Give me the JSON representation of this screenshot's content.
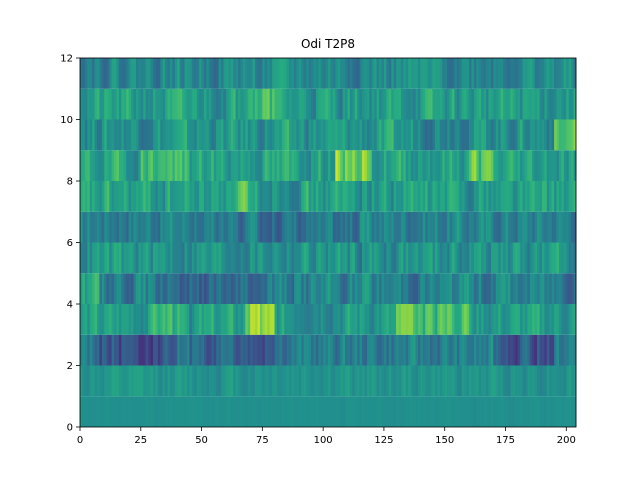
{
  "chart_data": {
    "type": "heatmap",
    "title": "Odi T2P8",
    "xlabel": "",
    "ylabel": "",
    "xlim": [
      0,
      204
    ],
    "ylim": [
      0,
      12
    ],
    "x_ticks": [
      0,
      25,
      50,
      75,
      100,
      125,
      150,
      175,
      200
    ],
    "y_ticks": [
      0,
      2,
      4,
      6,
      8,
      10,
      12
    ],
    "colormap": "viridis",
    "grid": false,
    "n_columns": 204,
    "rows": [
      {
        "y": [
          0,
          1
        ],
        "description": "near-uniform teal",
        "base": 0.5,
        "spread": 0.02,
        "seed": 11
      },
      {
        "y": [
          1,
          2
        ],
        "description": "teal with faint green stripes",
        "base": 0.52,
        "spread": 0.1,
        "seed": 12
      },
      {
        "y": [
          2,
          3
        ],
        "description": "dark blue bands around x=10-40, 45-80, 170-195",
        "base": 0.42,
        "spread": 0.18,
        "seed": 13,
        "features": [
          {
            "x": [
              8,
              40
            ],
            "delta": -0.18
          },
          {
            "x": [
              45,
              80
            ],
            "delta": -0.12
          },
          {
            "x": [
              170,
              195
            ],
            "delta": -0.15
          }
        ]
      },
      {
        "y": [
          3,
          4
        ],
        "description": "bright green peaks near x=70-78 and x=130-160",
        "base": 0.55,
        "spread": 0.18,
        "seed": 14,
        "features": [
          {
            "x": [
              30,
              45
            ],
            "delta": 0.15
          },
          {
            "x": [
              68,
              80
            ],
            "delta": 0.32
          },
          {
            "x": [
              130,
              160
            ],
            "delta": 0.2
          }
        ]
      },
      {
        "y": [
          4,
          5
        ],
        "description": "dark blue region x=25-80",
        "base": 0.45,
        "spread": 0.2,
        "seed": 15,
        "features": [
          {
            "x": [
              30,
              75
            ],
            "delta": -0.15
          },
          {
            "x": [
              0,
              8
            ],
            "delta": 0.2
          }
        ]
      },
      {
        "y": [
          5,
          6
        ],
        "description": "mixed teal/green",
        "base": 0.52,
        "spread": 0.2,
        "seed": 16
      },
      {
        "y": [
          6,
          7
        ],
        "description": "dark blue band x=50-115",
        "base": 0.46,
        "spread": 0.18,
        "seed": 17,
        "features": [
          {
            "x": [
              50,
              115
            ],
            "delta": -0.1
          }
        ]
      },
      {
        "y": [
          7,
          8
        ],
        "description": "mixed teal/green",
        "base": 0.56,
        "spread": 0.2,
        "seed": 18,
        "features": [
          {
            "x": [
              60,
              70
            ],
            "delta": 0.15
          }
        ]
      },
      {
        "y": [
          8,
          9
        ],
        "description": "bright yellow-green x=105-120",
        "base": 0.58,
        "spread": 0.2,
        "seed": 19,
        "features": [
          {
            "x": [
              105,
              120
            ],
            "delta": 0.3
          },
          {
            "x": [
              25,
              45
            ],
            "delta": 0.12
          },
          {
            "x": [
              160,
              170
            ],
            "delta": 0.2
          }
        ]
      },
      {
        "y": [
          9,
          10
        ],
        "description": "teal with green patches",
        "base": 0.52,
        "spread": 0.2,
        "seed": 20,
        "features": [
          {
            "x": [
              195,
              204
            ],
            "delta": 0.25
          }
        ]
      },
      {
        "y": [
          10,
          11
        ],
        "description": "teal/green mix",
        "base": 0.55,
        "spread": 0.2,
        "seed": 21,
        "features": [
          {
            "x": [
              65,
              80
            ],
            "delta": 0.18
          }
        ]
      },
      {
        "y": [
          11,
          12
        ],
        "description": "teal with blue dips",
        "base": 0.48,
        "spread": 0.18,
        "seed": 22
      }
    ]
  }
}
